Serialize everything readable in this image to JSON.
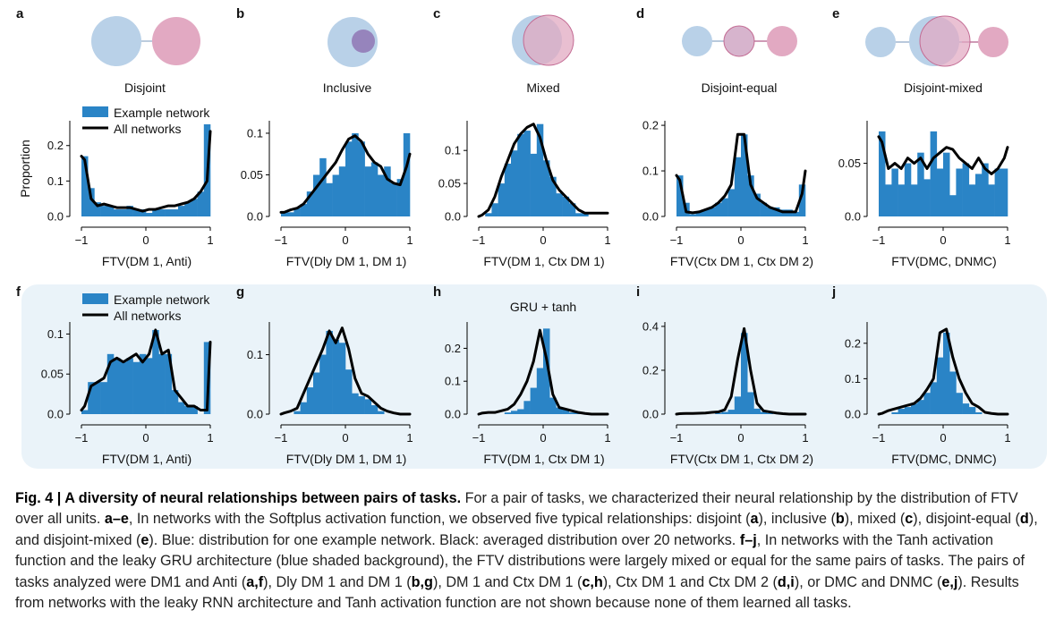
{
  "colors": {
    "blue": "#2a84c6",
    "venn_blue": "#b9d1e8",
    "venn_pink": "#e2a9c2",
    "venn_pink_stroke": "#c36b93",
    "venn_overlap": "#8b6aae",
    "shade": "#eaf3f9"
  },
  "caption": {
    "fig": "Fig. 4 | A diversity of neural relationships between pairs of tasks.",
    "sentences": [
      " For a pair of tasks, we characterized their neural relationship by the distribution of FTV over all units. ",
      {
        "b": "a–e"
      },
      ", In networks with the Softplus activation function, we observed five typical relationships: disjoint (",
      {
        "b": "a"
      },
      "), inclusive (",
      {
        "b": "b"
      },
      "), mixed (",
      {
        "b": "c"
      },
      "), disjoint-equal (",
      {
        "b": "d"
      },
      "), and disjoint-mixed (",
      {
        "b": "e"
      },
      "). Blue: distribution for one example network. Black: averaged distribution over 20 networks. ",
      {
        "b": "f–j"
      },
      ", In networks with the Tanh activation function and the leaky GRU architecture (blue shaded background), the FTV distributions were largely mixed or equal for the same pairs of tasks. The pairs of tasks analyzed were DM1 and Anti (",
      {
        "b": "a,f"
      },
      "), Dly DM 1 and DM 1 (",
      {
        "b": "b,g"
      },
      "), DM 1 and Ctx DM 1 (",
      {
        "b": "c,h"
      },
      "), Ctx DM 1 and Ctx DM 2 (",
      {
        "b": "d,i"
      },
      "), or DMC and DNMC (",
      {
        "b": "e,j"
      },
      "). Results from networks with the leaky RNN architecture and Tanh activation function are not shown because none of them learned all tasks."
    ]
  },
  "chart_data": [
    {
      "panel": "a",
      "type": "bar",
      "venn": "Disjoint",
      "ylabel": "Proportion",
      "xlabel": "FTV(DM 1, Anti)",
      "ylim": [
        0,
        0.27
      ],
      "yticks": [
        0.0,
        0.1,
        0.2
      ],
      "xticks": [
        -1,
        0,
        1
      ],
      "legend": [
        "Example network",
        "All networks"
      ],
      "bins": 20,
      "bars": [
        0.17,
        0.08,
        0.04,
        0.03,
        0.03,
        0.02,
        0.02,
        0.03,
        0.02,
        0.02,
        0.01,
        0.02,
        0.02,
        0.02,
        0.02,
        0.03,
        0.04,
        0.05,
        0.07,
        0.26
      ],
      "line_x": [
        -1.0,
        -0.95,
        -0.85,
        -0.75,
        -0.65,
        -0.55,
        -0.45,
        -0.35,
        -0.25,
        -0.15,
        -0.05,
        0.05,
        0.15,
        0.25,
        0.35,
        0.45,
        0.55,
        0.65,
        0.75,
        0.85,
        0.95,
        1.0
      ],
      "line_y": [
        0.17,
        0.16,
        0.05,
        0.03,
        0.035,
        0.03,
        0.025,
        0.025,
        0.025,
        0.02,
        0.015,
        0.02,
        0.02,
        0.025,
        0.03,
        0.03,
        0.035,
        0.04,
        0.05,
        0.07,
        0.1,
        0.24
      ]
    },
    {
      "panel": "b",
      "type": "bar",
      "venn": "Inclusive",
      "xlabel": "FTV(Dly DM 1, DM 1)",
      "ylim": [
        0,
        0.115
      ],
      "yticks": [
        0.0,
        0.05,
        0.1
      ],
      "xticks": [
        -1,
        0,
        1
      ],
      "bins": 20,
      "bars": [
        0.005,
        0.005,
        0.01,
        0.015,
        0.03,
        0.05,
        0.07,
        0.04,
        0.05,
        0.06,
        0.09,
        0.1,
        0.09,
        0.06,
        0.065,
        0.05,
        0.06,
        0.04,
        0.045,
        0.1
      ],
      "line_x": [
        -1.0,
        -0.95,
        -0.85,
        -0.75,
        -0.65,
        -0.55,
        -0.45,
        -0.35,
        -0.25,
        -0.15,
        -0.05,
        0.05,
        0.15,
        0.25,
        0.35,
        0.45,
        0.55,
        0.65,
        0.75,
        0.85,
        0.95,
        1.0
      ],
      "line_y": [
        0.005,
        0.005,
        0.008,
        0.01,
        0.015,
        0.025,
        0.035,
        0.045,
        0.055,
        0.065,
        0.08,
        0.093,
        0.097,
        0.09,
        0.075,
        0.065,
        0.06,
        0.045,
        0.04,
        0.038,
        0.06,
        0.075
      ]
    },
    {
      "panel": "c",
      "type": "bar",
      "venn": "Mixed",
      "xlabel": "FTV(DM 1, Ctx DM 1)",
      "ylim": [
        0,
        0.145
      ],
      "yticks": [
        0.0,
        0.05,
        0.1
      ],
      "xticks": [
        -1,
        0,
        1
      ],
      "bins": 20,
      "bars": [
        0.0,
        0.005,
        0.02,
        0.05,
        0.08,
        0.1,
        0.125,
        0.13,
        0.095,
        0.14,
        0.085,
        0.06,
        0.035,
        0.03,
        0.02,
        0.005,
        0.005,
        0.0,
        0.0,
        0.0
      ],
      "line_x": [
        -1.0,
        -0.95,
        -0.85,
        -0.75,
        -0.65,
        -0.55,
        -0.45,
        -0.35,
        -0.25,
        -0.15,
        -0.05,
        0.05,
        0.15,
        0.25,
        0.35,
        0.45,
        0.55,
        0.65,
        0.75,
        0.85,
        0.95,
        1.0
      ],
      "line_y": [
        0.0,
        0.002,
        0.01,
        0.03,
        0.06,
        0.085,
        0.11,
        0.125,
        0.135,
        0.14,
        0.12,
        0.085,
        0.055,
        0.04,
        0.03,
        0.02,
        0.01,
        0.005,
        0.005,
        0.005,
        0.005,
        0.005
      ]
    },
    {
      "panel": "d",
      "type": "bar",
      "venn": "Disjoint-equal",
      "xlabel": "FTV(Ctx DM 1, Ctx DM 2)",
      "ylim": [
        0,
        0.21
      ],
      "yticks": [
        0.0,
        0.1,
        0.2
      ],
      "xticks": [
        -1,
        0,
        1
      ],
      "bins": 20,
      "bars": [
        0.09,
        0.03,
        0.005,
        0.01,
        0.015,
        0.02,
        0.03,
        0.04,
        0.06,
        0.13,
        0.18,
        0.09,
        0.05,
        0.03,
        0.02,
        0.02,
        0.015,
        0.015,
        0.01,
        0.07
      ],
      "line_x": [
        -1.0,
        -0.95,
        -0.85,
        -0.75,
        -0.65,
        -0.55,
        -0.45,
        -0.35,
        -0.25,
        -0.15,
        -0.05,
        0.05,
        0.15,
        0.25,
        0.35,
        0.45,
        0.55,
        0.65,
        0.75,
        0.85,
        0.95,
        1.0
      ],
      "line_y": [
        0.09,
        0.08,
        0.01,
        0.008,
        0.01,
        0.015,
        0.02,
        0.03,
        0.045,
        0.07,
        0.18,
        0.18,
        0.07,
        0.04,
        0.03,
        0.02,
        0.015,
        0.01,
        0.01,
        0.01,
        0.05,
        0.1
      ]
    },
    {
      "panel": "e",
      "type": "bar",
      "venn": "Disjoint-mixed",
      "xlabel": "FTV(DMC, DNMC)",
      "ylim": [
        0,
        0.09
      ],
      "yticks": [
        0.0,
        0.05
      ],
      "xticks": [
        -1,
        0,
        1
      ],
      "bins": 20,
      "bars": [
        0.08,
        0.03,
        0.045,
        0.03,
        0.05,
        0.03,
        0.06,
        0.035,
        0.08,
        0.045,
        0.06,
        0.02,
        0.045,
        0.05,
        0.03,
        0.04,
        0.05,
        0.03,
        0.045,
        0.045
      ],
      "line_x": [
        -1.0,
        -0.95,
        -0.85,
        -0.75,
        -0.65,
        -0.55,
        -0.45,
        -0.35,
        -0.25,
        -0.15,
        -0.05,
        0.05,
        0.15,
        0.25,
        0.35,
        0.45,
        0.55,
        0.65,
        0.75,
        0.85,
        0.95,
        1.0
      ],
      "line_y": [
        0.075,
        0.07,
        0.045,
        0.05,
        0.045,
        0.055,
        0.05,
        0.055,
        0.045,
        0.055,
        0.06,
        0.065,
        0.063,
        0.055,
        0.05,
        0.045,
        0.055,
        0.045,
        0.04,
        0.045,
        0.055,
        0.065
      ]
    },
    {
      "panel": "f",
      "type": "bar",
      "xlabel": "FTV(DM 1, Anti)",
      "ylim": [
        0,
        0.115
      ],
      "yticks": [
        0.0,
        0.05,
        0.1
      ],
      "xticks": [
        -1,
        0,
        1
      ],
      "legend": [
        "Example network",
        "All networks"
      ],
      "bins": 20,
      "bars": [
        0.005,
        0.04,
        0.04,
        0.04,
        0.075,
        0.07,
        0.065,
        0.07,
        0.065,
        0.075,
        0.07,
        0.105,
        0.075,
        0.075,
        0.03,
        0.015,
        0.01,
        0.01,
        0.0,
        0.09
      ],
      "line_x": [
        -1.0,
        -0.95,
        -0.85,
        -0.75,
        -0.65,
        -0.55,
        -0.45,
        -0.35,
        -0.25,
        -0.15,
        -0.05,
        0.05,
        0.15,
        0.25,
        0.35,
        0.45,
        0.55,
        0.65,
        0.75,
        0.85,
        0.95,
        1.0
      ],
      "line_y": [
        0.005,
        0.01,
        0.035,
        0.04,
        0.045,
        0.065,
        0.07,
        0.065,
        0.07,
        0.075,
        0.065,
        0.075,
        0.105,
        0.075,
        0.08,
        0.03,
        0.02,
        0.01,
        0.01,
        0.005,
        0.005,
        0.09
      ]
    },
    {
      "panel": "g",
      "type": "bar",
      "xlabel": "FTV(Dly DM 1, DM 1)",
      "ylim": [
        0,
        0.155
      ],
      "yticks": [
        0.0,
        0.1
      ],
      "xticks": [
        -1,
        0,
        1
      ],
      "bins": 20,
      "bars": [
        0.0,
        0.0,
        0.005,
        0.02,
        0.045,
        0.07,
        0.1,
        0.14,
        0.125,
        0.12,
        0.075,
        0.035,
        0.03,
        0.025,
        0.015,
        0.005,
        0.0,
        0.0,
        0.0,
        0.0
      ],
      "line_x": [
        -1.0,
        -0.95,
        -0.85,
        -0.75,
        -0.65,
        -0.55,
        -0.45,
        -0.35,
        -0.25,
        -0.15,
        -0.05,
        0.05,
        0.15,
        0.25,
        0.35,
        0.45,
        0.55,
        0.65,
        0.75,
        0.85,
        0.95,
        1.0
      ],
      "line_y": [
        0.0,
        0.002,
        0.005,
        0.01,
        0.035,
        0.06,
        0.085,
        0.11,
        0.14,
        0.12,
        0.145,
        0.11,
        0.06,
        0.035,
        0.03,
        0.02,
        0.01,
        0.005,
        0.002,
        0.0,
        0.0,
        0.0
      ]
    },
    {
      "panel": "h",
      "type": "bar",
      "title": "GRU + tanh",
      "xlabel": "FTV(DM 1, Ctx DM 1)",
      "ylim": [
        0,
        0.28
      ],
      "yticks": [
        0.0,
        0.1,
        0.2
      ],
      "xticks": [
        -1,
        0,
        1
      ],
      "bins": 20,
      "bars": [
        0.0,
        0.0,
        0.0,
        0.0,
        0.005,
        0.01,
        0.015,
        0.04,
        0.08,
        0.14,
        0.26,
        0.05,
        0.02,
        0.015,
        0.005,
        0.005,
        0.0,
        0.0,
        0.0,
        0.0
      ],
      "line_x": [
        -1.0,
        -0.95,
        -0.85,
        -0.75,
        -0.65,
        -0.55,
        -0.45,
        -0.35,
        -0.25,
        -0.15,
        -0.05,
        0.05,
        0.15,
        0.25,
        0.35,
        0.45,
        0.55,
        0.65,
        0.75,
        0.85,
        0.95,
        1.0
      ],
      "line_y": [
        0.0,
        0.003,
        0.005,
        0.005,
        0.01,
        0.015,
        0.03,
        0.06,
        0.1,
        0.16,
        0.255,
        0.17,
        0.06,
        0.02,
        0.015,
        0.01,
        0.005,
        0.002,
        0.0,
        0.0,
        0.0,
        0.0
      ]
    },
    {
      "panel": "i",
      "type": "bar",
      "xlabel": "FTV(Ctx DM 1, Ctx DM 2)",
      "ylim": [
        0,
        0.42
      ],
      "yticks": [
        0.0,
        0.2,
        0.4
      ],
      "xticks": [
        -1,
        0,
        1
      ],
      "bins": 20,
      "bars": [
        0.0,
        0.0,
        0.0,
        0.0,
        0.0,
        0.0,
        0.005,
        0.01,
        0.02,
        0.08,
        0.37,
        0.1,
        0.025,
        0.01,
        0.005,
        0.0,
        0.0,
        0.0,
        0.0,
        0.0
      ],
      "line_x": [
        -1.0,
        -0.95,
        -0.85,
        -0.75,
        -0.65,
        -0.55,
        -0.45,
        -0.35,
        -0.25,
        -0.15,
        -0.05,
        0.05,
        0.15,
        0.25,
        0.35,
        0.45,
        0.55,
        0.65,
        0.75,
        0.85,
        0.95,
        1.0
      ],
      "line_y": [
        0.0,
        0.002,
        0.003,
        0.003,
        0.004,
        0.005,
        0.008,
        0.01,
        0.02,
        0.08,
        0.25,
        0.39,
        0.2,
        0.05,
        0.015,
        0.01,
        0.005,
        0.002,
        0.0,
        0.0,
        0.0,
        0.0
      ]
    },
    {
      "panel": "j",
      "type": "bar",
      "xlabel": "FTV(DMC, DNMC)",
      "ylim": [
        0,
        0.26
      ],
      "yticks": [
        0.0,
        0.1,
        0.2
      ],
      "xticks": [
        -1,
        0,
        1
      ],
      "bins": 20,
      "bars": [
        0.0,
        0.0,
        0.005,
        0.015,
        0.02,
        0.03,
        0.04,
        0.06,
        0.09,
        0.16,
        0.23,
        0.12,
        0.06,
        0.03,
        0.02,
        0.005,
        0.0,
        0.0,
        0.0,
        0.0
      ],
      "line_x": [
        -1.0,
        -0.95,
        -0.85,
        -0.75,
        -0.65,
        -0.55,
        -0.45,
        -0.35,
        -0.25,
        -0.15,
        -0.05,
        0.05,
        0.15,
        0.25,
        0.35,
        0.45,
        0.55,
        0.65,
        0.75,
        0.85,
        0.95,
        1.0
      ],
      "line_y": [
        0.0,
        0.002,
        0.01,
        0.015,
        0.02,
        0.025,
        0.03,
        0.045,
        0.07,
        0.1,
        0.23,
        0.24,
        0.16,
        0.1,
        0.06,
        0.03,
        0.02,
        0.005,
        0.002,
        0.0,
        0.0,
        0.0
      ]
    }
  ]
}
